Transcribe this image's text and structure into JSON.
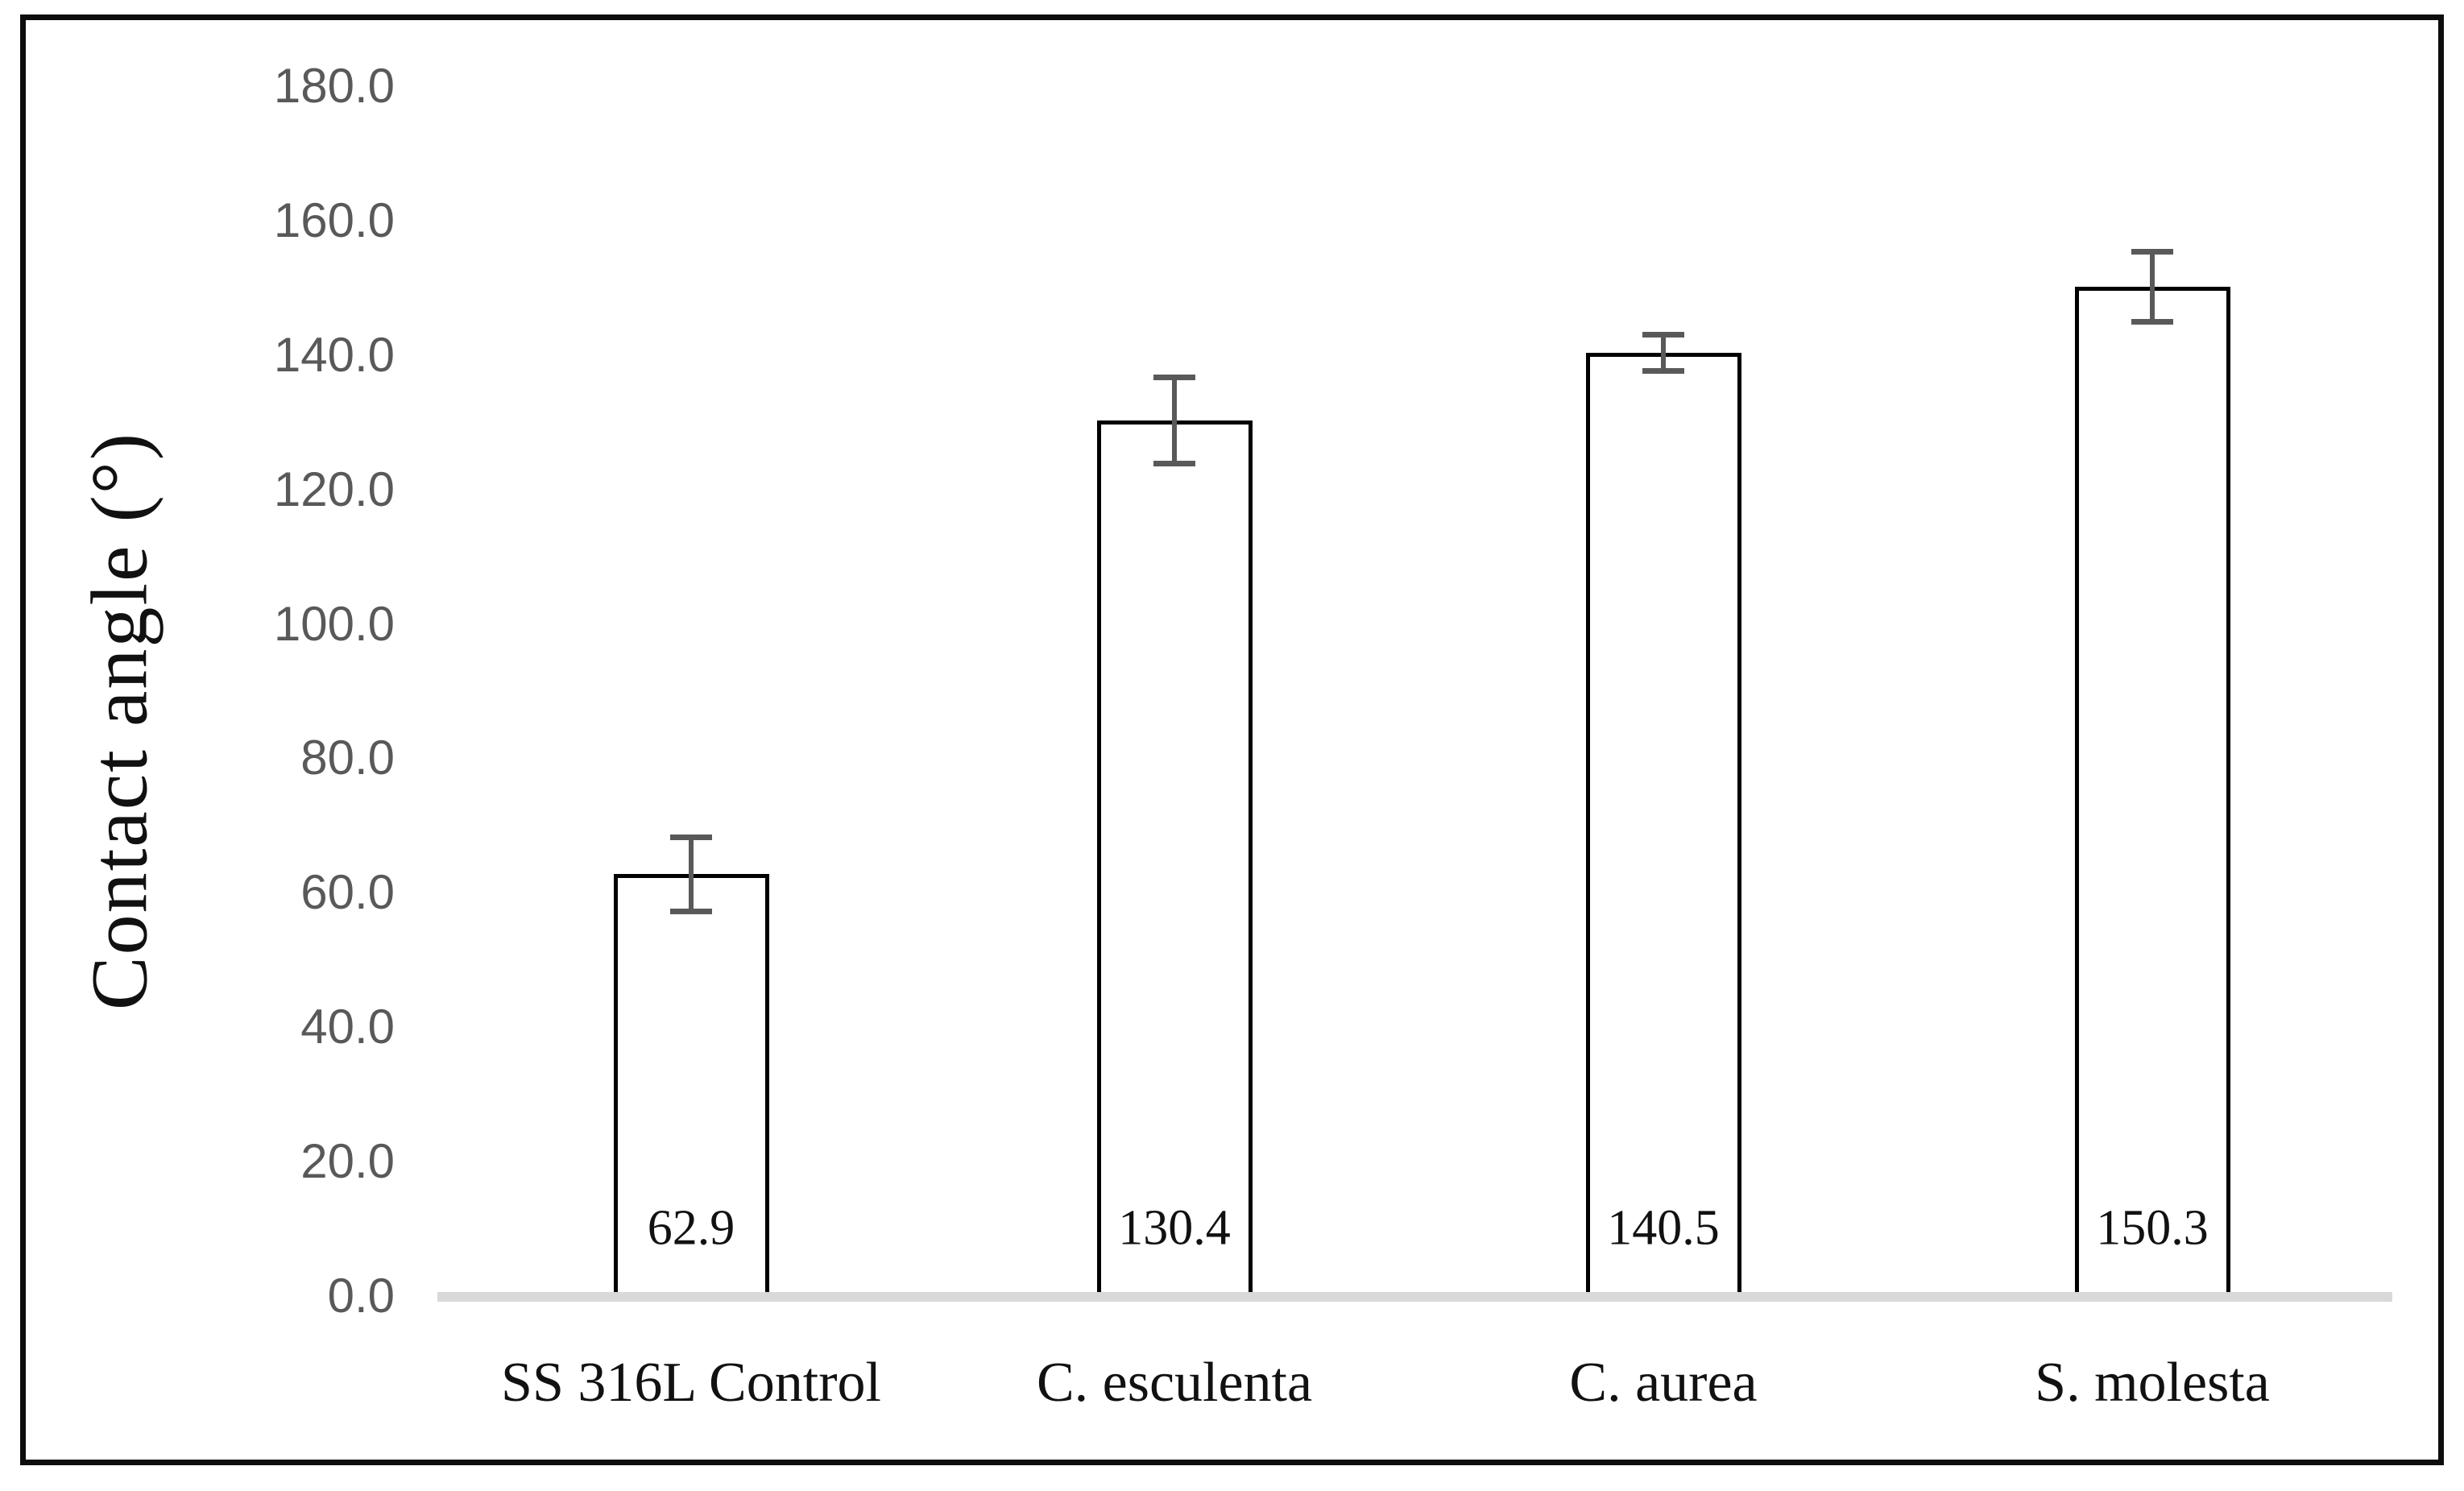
{
  "figure": {
    "description": "Bar chart of water contact angle for control and leaf-replica surfaces"
  },
  "chart_data": {
    "type": "bar",
    "title": "",
    "categories": [
      "SS 316L Control",
      "C. esculenta",
      "C. aurea",
      "S. molesta"
    ],
    "values": [
      62.9,
      130.4,
      140.5,
      150.3
    ],
    "value_labels": [
      "62.9",
      "130.4",
      "140.5",
      "150.3"
    ],
    "error_bars_plus_minus": [
      5.5,
      6.4,
      2.7,
      5.2
    ],
    "ylabel": "Contact angle (°)",
    "xlabel": "",
    "ylim": [
      0,
      180
    ],
    "ytick_interval": 20,
    "ytick_labels": [
      "0.0",
      "20.0",
      "40.0",
      "60.0",
      "80.0",
      "100.0",
      "120.0",
      "140.0",
      "160.0",
      "180.0"
    ],
    "grid": false,
    "legend": false,
    "colors": {
      "bar_fill": "#ffffff",
      "bar_border": "#000000",
      "error_bar": "#595959",
      "axis_baseline": "#d9d9d9",
      "tick_label": "#595959",
      "text": "#111111",
      "frame": "#0d0d0d"
    }
  }
}
